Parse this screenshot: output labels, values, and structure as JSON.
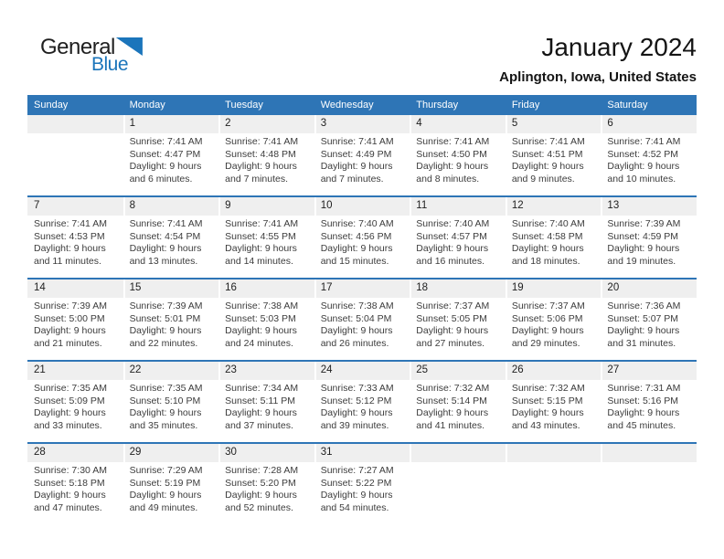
{
  "logo": {
    "text_top": "General",
    "text_bottom": "Blue",
    "triangle_icon": "blue-triangle"
  },
  "page_header": {
    "title": "January 2024",
    "subtitle": "Aplington, Iowa, United States"
  },
  "colors": {
    "header_bar": "#2E75B6",
    "week_divider": "#2E75B6",
    "day_number_strip": "#EFEFEF",
    "logo_blue": "#1B75BB"
  },
  "calendar": {
    "weekdays": [
      "Sunday",
      "Monday",
      "Tuesday",
      "Wednesday",
      "Thursday",
      "Friday",
      "Saturday"
    ],
    "weeks": [
      [
        {
          "day": ""
        },
        {
          "day": "1",
          "sunrise": "Sunrise: 7:41 AM",
          "sunset": "Sunset: 4:47 PM",
          "daylight": "Daylight: 9 hours and 6 minutes."
        },
        {
          "day": "2",
          "sunrise": "Sunrise: 7:41 AM",
          "sunset": "Sunset: 4:48 PM",
          "daylight": "Daylight: 9 hours and 7 minutes."
        },
        {
          "day": "3",
          "sunrise": "Sunrise: 7:41 AM",
          "sunset": "Sunset: 4:49 PM",
          "daylight": "Daylight: 9 hours and 7 minutes."
        },
        {
          "day": "4",
          "sunrise": "Sunrise: 7:41 AM",
          "sunset": "Sunset: 4:50 PM",
          "daylight": "Daylight: 9 hours and 8 minutes."
        },
        {
          "day": "5",
          "sunrise": "Sunrise: 7:41 AM",
          "sunset": "Sunset: 4:51 PM",
          "daylight": "Daylight: 9 hours and 9 minutes."
        },
        {
          "day": "6",
          "sunrise": "Sunrise: 7:41 AM",
          "sunset": "Sunset: 4:52 PM",
          "daylight": "Daylight: 9 hours and 10 minutes."
        }
      ],
      [
        {
          "day": "7",
          "sunrise": "Sunrise: 7:41 AM",
          "sunset": "Sunset: 4:53 PM",
          "daylight": "Daylight: 9 hours and 11 minutes."
        },
        {
          "day": "8",
          "sunrise": "Sunrise: 7:41 AM",
          "sunset": "Sunset: 4:54 PM",
          "daylight": "Daylight: 9 hours and 13 minutes."
        },
        {
          "day": "9",
          "sunrise": "Sunrise: 7:41 AM",
          "sunset": "Sunset: 4:55 PM",
          "daylight": "Daylight: 9 hours and 14 minutes."
        },
        {
          "day": "10",
          "sunrise": "Sunrise: 7:40 AM",
          "sunset": "Sunset: 4:56 PM",
          "daylight": "Daylight: 9 hours and 15 minutes."
        },
        {
          "day": "11",
          "sunrise": "Sunrise: 7:40 AM",
          "sunset": "Sunset: 4:57 PM",
          "daylight": "Daylight: 9 hours and 16 minutes."
        },
        {
          "day": "12",
          "sunrise": "Sunrise: 7:40 AM",
          "sunset": "Sunset: 4:58 PM",
          "daylight": "Daylight: 9 hours and 18 minutes."
        },
        {
          "day": "13",
          "sunrise": "Sunrise: 7:39 AM",
          "sunset": "Sunset: 4:59 PM",
          "daylight": "Daylight: 9 hours and 19 minutes."
        }
      ],
      [
        {
          "day": "14",
          "sunrise": "Sunrise: 7:39 AM",
          "sunset": "Sunset: 5:00 PM",
          "daylight": "Daylight: 9 hours and 21 minutes."
        },
        {
          "day": "15",
          "sunrise": "Sunrise: 7:39 AM",
          "sunset": "Sunset: 5:01 PM",
          "daylight": "Daylight: 9 hours and 22 minutes."
        },
        {
          "day": "16",
          "sunrise": "Sunrise: 7:38 AM",
          "sunset": "Sunset: 5:03 PM",
          "daylight": "Daylight: 9 hours and 24 minutes."
        },
        {
          "day": "17",
          "sunrise": "Sunrise: 7:38 AM",
          "sunset": "Sunset: 5:04 PM",
          "daylight": "Daylight: 9 hours and 26 minutes."
        },
        {
          "day": "18",
          "sunrise": "Sunrise: 7:37 AM",
          "sunset": "Sunset: 5:05 PM",
          "daylight": "Daylight: 9 hours and 27 minutes."
        },
        {
          "day": "19",
          "sunrise": "Sunrise: 7:37 AM",
          "sunset": "Sunset: 5:06 PM",
          "daylight": "Daylight: 9 hours and 29 minutes."
        },
        {
          "day": "20",
          "sunrise": "Sunrise: 7:36 AM",
          "sunset": "Sunset: 5:07 PM",
          "daylight": "Daylight: 9 hours and 31 minutes."
        }
      ],
      [
        {
          "day": "21",
          "sunrise": "Sunrise: 7:35 AM",
          "sunset": "Sunset: 5:09 PM",
          "daylight": "Daylight: 9 hours and 33 minutes."
        },
        {
          "day": "22",
          "sunrise": "Sunrise: 7:35 AM",
          "sunset": "Sunset: 5:10 PM",
          "daylight": "Daylight: 9 hours and 35 minutes."
        },
        {
          "day": "23",
          "sunrise": "Sunrise: 7:34 AM",
          "sunset": "Sunset: 5:11 PM",
          "daylight": "Daylight: 9 hours and 37 minutes."
        },
        {
          "day": "24",
          "sunrise": "Sunrise: 7:33 AM",
          "sunset": "Sunset: 5:12 PM",
          "daylight": "Daylight: 9 hours and 39 minutes."
        },
        {
          "day": "25",
          "sunrise": "Sunrise: 7:32 AM",
          "sunset": "Sunset: 5:14 PM",
          "daylight": "Daylight: 9 hours and 41 minutes."
        },
        {
          "day": "26",
          "sunrise": "Sunrise: 7:32 AM",
          "sunset": "Sunset: 5:15 PM",
          "daylight": "Daylight: 9 hours and 43 minutes."
        },
        {
          "day": "27",
          "sunrise": "Sunrise: 7:31 AM",
          "sunset": "Sunset: 5:16 PM",
          "daylight": "Daylight: 9 hours and 45 minutes."
        }
      ],
      [
        {
          "day": "28",
          "sunrise": "Sunrise: 7:30 AM",
          "sunset": "Sunset: 5:18 PM",
          "daylight": "Daylight: 9 hours and 47 minutes."
        },
        {
          "day": "29",
          "sunrise": "Sunrise: 7:29 AM",
          "sunset": "Sunset: 5:19 PM",
          "daylight": "Daylight: 9 hours and 49 minutes."
        },
        {
          "day": "30",
          "sunrise": "Sunrise: 7:28 AM",
          "sunset": "Sunset: 5:20 PM",
          "daylight": "Daylight: 9 hours and 52 minutes."
        },
        {
          "day": "31",
          "sunrise": "Sunrise: 7:27 AM",
          "sunset": "Sunset: 5:22 PM",
          "daylight": "Daylight: 9 hours and 54 minutes."
        },
        {
          "day": ""
        },
        {
          "day": ""
        },
        {
          "day": ""
        }
      ]
    ]
  }
}
